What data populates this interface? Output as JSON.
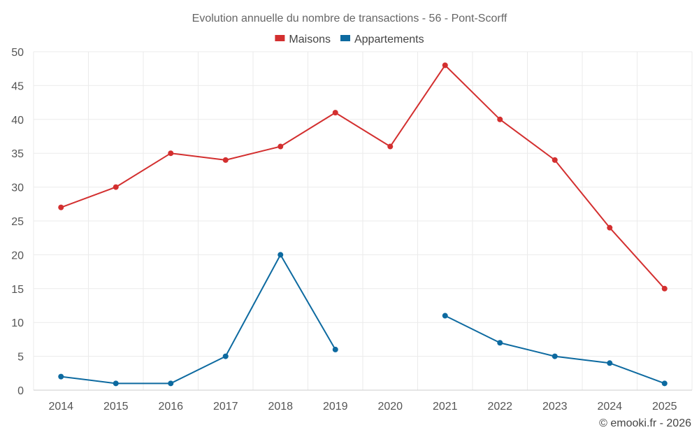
{
  "chart_data": {
    "type": "line",
    "title": "Evolution annuelle du nombre de transactions - 56 - Pont-Scorff",
    "xlabel": "",
    "ylabel": "",
    "ylim": [
      0,
      50
    ],
    "yticks": [
      0,
      5,
      10,
      15,
      20,
      25,
      30,
      35,
      40,
      45,
      50
    ],
    "grid": true,
    "legend_position": "top-center",
    "categories": [
      "2014",
      "2015",
      "2016",
      "2017",
      "2018",
      "2019",
      "2020",
      "2021",
      "2022",
      "2023",
      "2024",
      "2025"
    ],
    "series": [
      {
        "name": "Maisons",
        "color": "#d32f2f",
        "values": [
          27,
          30,
          35,
          34,
          36,
          41,
          36,
          48,
          40,
          34,
          24,
          15
        ]
      },
      {
        "name": "Appartements",
        "color": "#0d6aa0",
        "values": [
          2,
          1,
          1,
          5,
          20,
          6,
          null,
          11,
          7,
          5,
          4,
          1
        ]
      }
    ]
  },
  "credit": "© emooki.fr - 2026",
  "colors": {
    "grid": "#ebebeb",
    "axis": "#cccccc"
  }
}
